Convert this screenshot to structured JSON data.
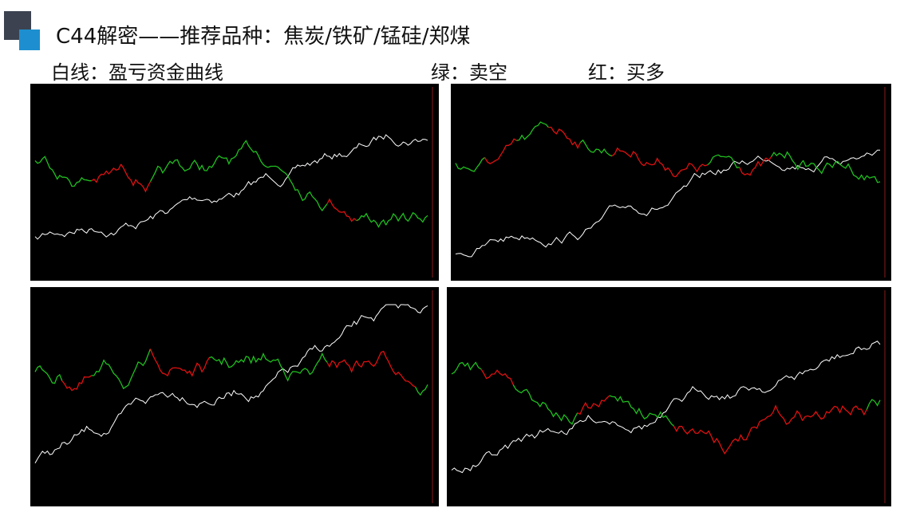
{
  "header": {
    "title": "C44解密——推荐品种：焦炭/铁矿/锰硅/郑煤"
  },
  "legend": {
    "white": "白线：盈亏资金曲线",
    "green": "绿：卖空",
    "red": "红：买多"
  }
}
